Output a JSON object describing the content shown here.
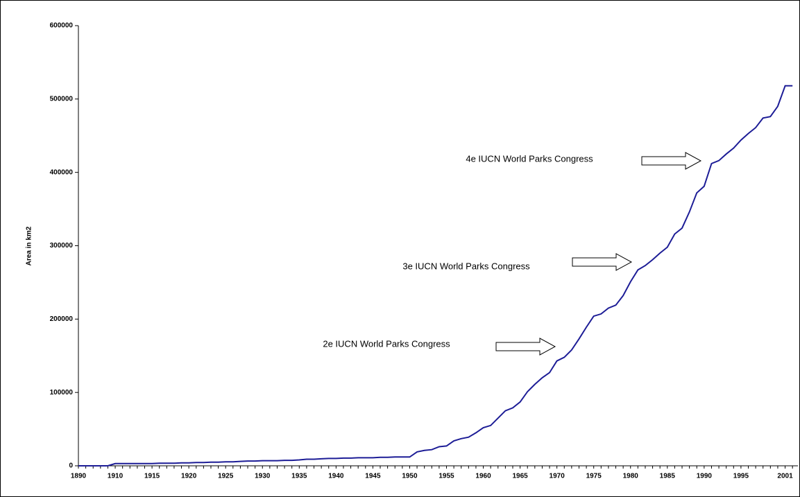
{
  "chart_data": {
    "type": "line",
    "y_label": "Area in km2",
    "categories": [
      "1890",
      null,
      null,
      null,
      null,
      "1910",
      null,
      null,
      null,
      null,
      "1915",
      null,
      null,
      null,
      null,
      "1920",
      null,
      null,
      null,
      null,
      "1925",
      null,
      null,
      null,
      null,
      "1930",
      null,
      null,
      null,
      null,
      "1935",
      null,
      null,
      null,
      null,
      "1940",
      null,
      null,
      null,
      null,
      "1945",
      null,
      null,
      null,
      null,
      "1950",
      null,
      null,
      null,
      null,
      "1955",
      null,
      null,
      null,
      null,
      "1960",
      null,
      null,
      null,
      null,
      "1965",
      null,
      null,
      null,
      null,
      "1970",
      null,
      null,
      null,
      null,
      "1975",
      null,
      null,
      null,
      null,
      "1980",
      null,
      null,
      null,
      null,
      "1985",
      null,
      null,
      null,
      null,
      "1990",
      null,
      null,
      null,
      null,
      "1995",
      null,
      null,
      null,
      null,
      null,
      "2001",
      null
    ],
    "color": "#1c1c96",
    "values": [
      0,
      0,
      0,
      0,
      0,
      3000,
      3000,
      3000,
      3000,
      3000,
      3000,
      3500,
      3500,
      3500,
      4000,
      4000,
      4500,
      4500,
      5000,
      5000,
      5500,
      5500,
      6000,
      6500,
      6500,
      7000,
      7000,
      7000,
      7500,
      7500,
      8000,
      9000,
      9000,
      9500,
      10000,
      10000,
      10500,
      10500,
      11000,
      11000,
      11000,
      11500,
      11500,
      12000,
      12000,
      12000,
      19000,
      21000,
      22000,
      26000,
      27000,
      34000,
      37000,
      39000,
      45000,
      52000,
      55000,
      65000,
      75000,
      79000,
      87000,
      101000,
      111000,
      120000,
      127000,
      143000,
      148000,
      158000,
      173000,
      189000,
      204000,
      207000,
      215000,
      219000,
      232000,
      251000,
      267000,
      273000,
      281000,
      290000,
      298000,
      316000,
      324000,
      346000,
      372000,
      381000,
      412000,
      416000,
      425000,
      433000,
      444000,
      453000,
      461000,
      474000,
      476000,
      490000,
      518000,
      518000
    ],
    "ylim": [
      0,
      600000
    ],
    "yticks": [
      0,
      100000,
      200000,
      300000,
      400000,
      500000,
      600000
    ],
    "annotations": [
      "2e IUCN World Parks Congress",
      "3e IUCN World Parks Congress",
      "4e IUCN World Parks Congress"
    ]
  }
}
